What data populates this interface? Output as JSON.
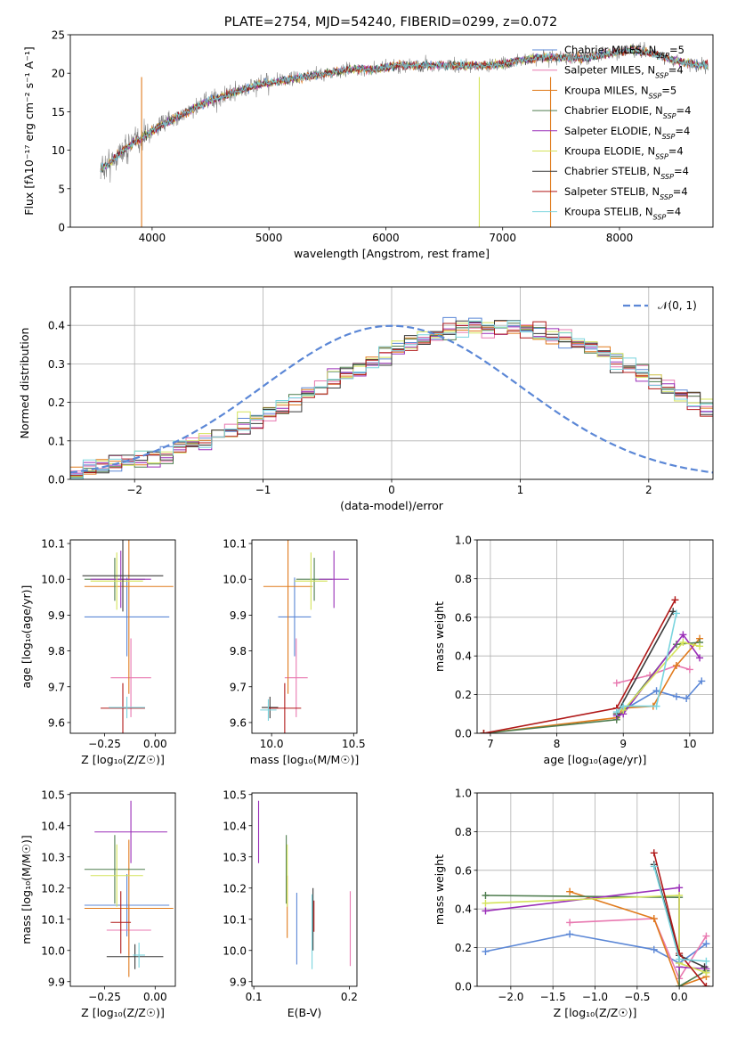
{
  "colors": {
    "Chabrier MILES": "#5b87d6",
    "Salpeter MILES": "#e878b0",
    "Kroupa MILES": "#e07b1d",
    "Chabrier ELODIE": "#4f7d4f",
    "Salpeter ELODIE": "#9a2fb8",
    "Kroupa ELODIE": "#d4e35a",
    "Chabrier STELIB": "#3a3a3a",
    "Salpeter STELIB": "#b01818",
    "Kroupa STELIB": "#79d4de",
    "data_spectrum": "#808080",
    "normal_curve": "#5b87d6"
  },
  "chart_data": [
    {
      "type": "line",
      "id": "spectrum",
      "title": "PLATE=2754, MJD=54240, FIBERID=0299, z=0.072",
      "xlabel": "wavelength [Angstrom, rest frame]",
      "ylabel": "Flux [fλ10⁻¹⁷ erg cm⁻² s⁻¹ A⁻¹]",
      "xlim": [
        3300,
        8800
      ],
      "ylim": [
        0,
        25
      ],
      "xticks": [
        4000,
        5000,
        6000,
        7000,
        8000
      ],
      "yticks": [
        0,
        5,
        10,
        15,
        20,
        25
      ],
      "grid": false,
      "legend_position": "right",
      "legend": [
        "Chabrier MILES, N_SSP=5",
        "Salpeter MILES, N_SSP=4",
        "Kroupa MILES, N_SSP=5",
        "Chabrier ELODIE, N_SSP=4",
        "Salpeter ELODIE, N_SSP=4",
        "Kroupa ELODIE, N_SSP=4",
        "Chabrier STELIB, N_SSP=4",
        "Salpeter STELIB, N_SSP=4",
        "Kroupa STELIB, N_SSP=4"
      ],
      "continuum": {
        "x": [
          3550,
          3650,
          3750,
          3850,
          3950,
          4050,
          4150,
          4300,
          4500,
          4700,
          4900,
          5100,
          5300,
          5500,
          5700,
          5900,
          6100,
          6300,
          6500,
          6700,
          6900,
          7100,
          7300,
          7500,
          7700,
          7900,
          8100,
          8300,
          8500,
          8700
        ],
        "y": [
          7.5,
          8.5,
          10,
          11,
          12,
          13,
          13.8,
          15,
          16.5,
          17.5,
          18.5,
          19,
          19.5,
          20,
          20.5,
          20.5,
          21,
          21,
          21,
          21,
          21,
          21.5,
          22,
          22,
          22,
          22.5,
          23,
          22.5,
          21.5,
          21
        ]
      },
      "spikes": [
        {
          "x": 3910,
          "y": 0
        },
        {
          "x": 6800,
          "y": 0
        },
        {
          "x": 7410,
          "y": 0
        }
      ]
    },
    {
      "type": "histogram",
      "id": "residuals",
      "xlabel": "(data-model)/error",
      "ylabel": "Normed distribution",
      "xlim": [
        -2.5,
        2.5
      ],
      "ylim": [
        0,
        0.5
      ],
      "xticks": [
        -2,
        -1,
        0,
        1,
        2
      ],
      "yticks": [
        0.0,
        0.1,
        0.2,
        0.3,
        0.4
      ],
      "grid": true,
      "legend": "𝒩(0, 1)",
      "bin_width": 0.1,
      "bin_start": -2.5,
      "mean_heights": [
        0.022,
        0.027,
        0.034,
        0.042,
        0.05,
        0.055,
        0.062,
        0.07,
        0.08,
        0.09,
        0.1,
        0.11,
        0.125,
        0.14,
        0.155,
        0.17,
        0.19,
        0.205,
        0.225,
        0.24,
        0.26,
        0.275,
        0.29,
        0.305,
        0.32,
        0.34,
        0.355,
        0.365,
        0.375,
        0.385,
        0.395,
        0.4,
        0.395,
        0.39,
        0.395,
        0.39,
        0.385,
        0.375,
        0.365,
        0.355,
        0.34,
        0.32,
        0.305,
        0.29,
        0.275,
        0.255,
        0.24,
        0.22,
        0.205,
        0.185,
        0.17,
        0.155,
        0.14,
        0.125,
        0.11,
        0.095,
        0.085,
        0.075,
        0.065,
        0.058,
        0.05,
        0.045,
        0.04,
        0.035,
        0.03,
        0.028,
        0.025
      ]
    },
    {
      "type": "scatter",
      "id": "z-age",
      "xlabel": "Z [log₁₀(Z/Z☉)]",
      "ylabel": "age [log₁₀(age/yr)]",
      "xlim": [
        -0.42,
        0.1
      ],
      "ylim": [
        9.57,
        10.11
      ],
      "xticks": [
        -0.25,
        0.0
      ],
      "yticks": [
        9.6,
        9.7,
        9.8,
        9.9,
        10.0,
        10.1
      ],
      "xtick_labels": [
        "−0.25",
        "0.00"
      ],
      "points": [
        {
          "model": "Chabrier MILES",
          "x": -0.14,
          "y": 9.895,
          "xerr": 0.21,
          "yerr": 0.11
        },
        {
          "model": "Salpeter MILES",
          "x": -0.12,
          "y": 9.725,
          "xerr": 0.1,
          "yerr": 0.11
        },
        {
          "model": "Kroupa MILES",
          "x": -0.13,
          "y": 9.98,
          "xerr": 0.22,
          "yerr": 0.3
        },
        {
          "model": "Chabrier ELODIE",
          "x": -0.2,
          "y": 10.0,
          "xerr": 0.15,
          "yerr": 0.06
        },
        {
          "model": "Salpeter ELODIE",
          "x": -0.17,
          "y": 10.0,
          "xerr": 0.15,
          "yerr": 0.08
        },
        {
          "model": "Kroupa ELODIE",
          "x": -0.19,
          "y": 9.995,
          "xerr": 0.13,
          "yerr": 0.08
        },
        {
          "model": "Chabrier STELIB",
          "x": -0.16,
          "y": 10.01,
          "xerr": 0.2,
          "yerr": 0.1
        },
        {
          "model": "Salpeter STELIB",
          "x": -0.16,
          "y": 9.64,
          "xerr": 0.11,
          "yerr": 0.07
        },
        {
          "model": "Kroupa STELIB",
          "x": -0.14,
          "y": 9.642,
          "xerr": 0.09,
          "yerr": 0.03
        }
      ]
    },
    {
      "type": "scatter",
      "id": "mass-age",
      "xlabel": "mass [log₁₀(M/M☉)]",
      "ylabel": "",
      "xlim": [
        9.88,
        10.52
      ],
      "ylim": [
        9.57,
        10.11
      ],
      "xticks": [
        10.0,
        10.5
      ],
      "yticks": [
        9.6,
        9.7,
        9.8,
        9.9,
        10.0,
        10.1
      ],
      "points": [
        {
          "model": "Chabrier MILES",
          "x": 10.14,
          "y": 9.895,
          "xerr": 0.1,
          "yerr": 0.11
        },
        {
          "model": "Salpeter MILES",
          "x": 10.15,
          "y": 9.725,
          "xerr": 0.07,
          "yerr": 0.11
        },
        {
          "model": "Kroupa MILES",
          "x": 10.1,
          "y": 9.98,
          "xerr": 0.15,
          "yerr": 0.3
        },
        {
          "model": "Chabrier ELODIE",
          "x": 10.26,
          "y": 10.0,
          "xerr": 0.11,
          "yerr": 0.06
        },
        {
          "model": "Salpeter ELODIE",
          "x": 10.38,
          "y": 10.0,
          "xerr": 0.09,
          "yerr": 0.08
        },
        {
          "model": "Kroupa ELODIE",
          "x": 10.24,
          "y": 9.995,
          "xerr": 0.1,
          "yerr": 0.08
        },
        {
          "model": "Chabrier STELIB",
          "x": 9.99,
          "y": 9.642,
          "xerr": 0.05,
          "yerr": 0.03
        },
        {
          "model": "Salpeter STELIB",
          "x": 10.08,
          "y": 9.64,
          "xerr": 0.1,
          "yerr": 0.07
        },
        {
          "model": "Kroupa STELIB",
          "x": 9.98,
          "y": 9.635,
          "xerr": 0.05,
          "yerr": 0.03
        }
      ]
    },
    {
      "type": "line",
      "id": "age-weight",
      "xlabel": "age  [log₁₀(age/yr)]",
      "ylabel": "mass weight",
      "xlim": [
        6.8,
        10.35
      ],
      "ylim": [
        0,
        1.0
      ],
      "xticks": [
        7,
        8,
        9,
        10
      ],
      "yticks": [
        0.0,
        0.2,
        0.4,
        0.6,
        0.8,
        1.0
      ],
      "grid": true,
      "series": [
        {
          "model": "Chabrier MILES",
          "x": [
            9.0,
            9.5,
            9.8,
            9.95,
            10.18
          ],
          "y": [
            0.12,
            0.22,
            0.19,
            0.18,
            0.27
          ]
        },
        {
          "model": "Salpeter MILES",
          "x": [
            8.9,
            9.4,
            9.8,
            10.0
          ],
          "y": [
            0.26,
            0.3,
            0.35,
            0.33
          ]
        },
        {
          "model": "Kroupa MILES",
          "x": [
            6.9,
            8.9,
            9.0,
            9.45,
            9.8,
            10.15
          ],
          "y": [
            0.0,
            0.08,
            0.13,
            0.14,
            0.35,
            0.49
          ]
        },
        {
          "model": "Chabrier ELODIE",
          "x": [
            6.9,
            8.9,
            9.8,
            10.15
          ],
          "y": [
            0.0,
            0.07,
            0.46,
            0.47
          ]
        },
        {
          "model": "Salpeter ELODIE",
          "x": [
            8.9,
            9.0,
            9.9,
            10.15
          ],
          "y": [
            0.09,
            0.1,
            0.51,
            0.39
          ]
        },
        {
          "model": "Kroupa ELODIE",
          "x": [
            9.0,
            9.9,
            10.15
          ],
          "y": [
            0.12,
            0.47,
            0.45
          ]
        },
        {
          "model": "Chabrier STELIB",
          "x": [
            8.9,
            9.75
          ],
          "y": [
            0.1,
            0.63
          ]
        },
        {
          "model": "Salpeter STELIB",
          "x": [
            6.9,
            8.9,
            9.78
          ],
          "y": [
            0.0,
            0.13,
            0.69
          ]
        },
        {
          "model": "Kroupa STELIB",
          "x": [
            8.9,
            9.0,
            9.5,
            9.8
          ],
          "y": [
            0.11,
            0.14,
            0.14,
            0.62
          ]
        }
      ]
    },
    {
      "type": "scatter",
      "id": "z-mass",
      "xlabel": "Z [log₁₀(Z/Z☉)]",
      "ylabel": "mass [log₁₀(M/M☉)]",
      "xlim": [
        -0.42,
        0.1
      ],
      "ylim": [
        9.885,
        10.505
      ],
      "xticks": [
        -0.25,
        0.0
      ],
      "xtick_labels": [
        "−0.25",
        "0.00"
      ],
      "yticks": [
        9.9,
        10.0,
        10.1,
        10.2,
        10.3,
        10.4,
        10.5
      ],
      "points": [
        {
          "model": "Chabrier MILES",
          "x": -0.14,
          "y": 10.145,
          "xerr": 0.21,
          "yerr": 0.1
        },
        {
          "model": "Salpeter MILES",
          "x": -0.13,
          "y": 10.065,
          "xerr": 0.11,
          "yerr": 0.08
        },
        {
          "model": "Kroupa MILES",
          "x": -0.13,
          "y": 10.135,
          "xerr": 0.22,
          "yerr": 0.22
        },
        {
          "model": "Chabrier ELODIE",
          "x": -0.2,
          "y": 10.26,
          "xerr": 0.15,
          "yerr": 0.11
        },
        {
          "model": "Salpeter ELODIE",
          "x": -0.12,
          "y": 10.38,
          "xerr": 0.18,
          "yerr": 0.1
        },
        {
          "model": "Kroupa ELODIE",
          "x": -0.19,
          "y": 10.24,
          "xerr": 0.13,
          "yerr": 0.1
        },
        {
          "model": "Chabrier STELIB",
          "x": -0.1,
          "y": 9.98,
          "xerr": 0.14,
          "yerr": 0.04
        },
        {
          "model": "Salpeter STELIB",
          "x": -0.17,
          "y": 10.09,
          "xerr": 0.05,
          "yerr": 0.1
        },
        {
          "model": "Kroupa STELIB",
          "x": -0.08,
          "y": 9.985,
          "xerr": 0.03,
          "yerr": 0.04
        }
      ]
    },
    {
      "type": "scatter",
      "id": "ebv-mass",
      "xlabel": "E(B-V)",
      "ylabel": "",
      "xlim": [
        0.098,
        0.208
      ],
      "ylim": [
        9.885,
        10.505
      ],
      "xticks": [
        0.1,
        0.2
      ],
      "yticks": [
        9.9,
        10.0,
        10.1,
        10.2,
        10.3,
        10.4,
        10.5
      ],
      "points": [
        {
          "model": "Chabrier MILES",
          "x": 0.145,
          "y": 10.07,
          "xerr": 0,
          "yerr": 0.115
        },
        {
          "model": "Salpeter MILES",
          "x": 0.201,
          "y": 10.07,
          "xerr": 0,
          "yerr": 0.12
        },
        {
          "model": "Kroupa MILES",
          "x": 0.135,
          "y": 10.14,
          "xerr": 0,
          "yerr": 0.1
        },
        {
          "model": "Chabrier ELODIE",
          "x": 0.134,
          "y": 10.26,
          "xerr": 0,
          "yerr": 0.11
        },
        {
          "model": "Salpeter ELODIE",
          "x": 0.105,
          "y": 10.38,
          "xerr": 0,
          "yerr": 0.1
        },
        {
          "model": "Kroupa ELODIE",
          "x": 0.135,
          "y": 10.24,
          "xerr": 0,
          "yerr": 0.1
        },
        {
          "model": "Chabrier STELIB",
          "x": 0.162,
          "y": 10.1,
          "xerr": 0,
          "yerr": 0.1
        },
        {
          "model": "Salpeter STELIB",
          "x": 0.163,
          "y": 10.11,
          "xerr": 0,
          "yerr": 0.05
        },
        {
          "model": "Kroupa STELIB",
          "x": 0.161,
          "y": 10.06,
          "xerr": 0,
          "yerr": 0.12
        }
      ]
    },
    {
      "type": "line",
      "id": "z-weight",
      "xlabel": "Z [log₁₀(Z/Z☉)]",
      "ylabel": "mass weight",
      "xlim": [
        -2.4,
        0.4
      ],
      "ylim": [
        0,
        1.0
      ],
      "xticks": [
        -2.0,
        -1.5,
        -1.0,
        -0.5,
        0.0
      ],
      "xtick_labels": [
        "−2.0",
        "−1.5",
        "−1.0",
        "−0.5",
        "0.0"
      ],
      "yticks": [
        0.0,
        0.2,
        0.4,
        0.6,
        0.8,
        1.0
      ],
      "grid": true,
      "series": [
        {
          "model": "Chabrier MILES",
          "x": [
            -2.3,
            -1.3,
            -0.3,
            0.0,
            0.32
          ],
          "y": [
            0.18,
            0.27,
            0.19,
            0.12,
            0.22
          ]
        },
        {
          "model": "Salpeter MILES",
          "x": [
            -1.3,
            -0.3,
            0.0,
            0.32
          ],
          "y": [
            0.33,
            0.35,
            0.04,
            0.26
          ]
        },
        {
          "model": "Kroupa MILES",
          "x": [
            -1.3,
            -0.3,
            0.0,
            0.32
          ],
          "y": [
            0.49,
            0.35,
            0.0,
            0.05
          ]
        },
        {
          "model": "Chabrier ELODIE",
          "x": [
            -2.3,
            0.0,
            0.0,
            0.32
          ],
          "y": [
            0.47,
            0.46,
            0.0,
            0.08
          ]
        },
        {
          "model": "Salpeter ELODIE",
          "x": [
            -2.3,
            0.0,
            0.0,
            0.32
          ],
          "y": [
            0.39,
            0.51,
            0.1,
            0.09
          ]
        },
        {
          "model": "Kroupa ELODIE",
          "x": [
            -2.3,
            0.0,
            0.0,
            0.32
          ],
          "y": [
            0.43,
            0.47,
            0.12,
            0.07
          ]
        },
        {
          "model": "Chabrier STELIB",
          "x": [
            -0.3,
            0.0,
            0.3
          ],
          "y": [
            0.63,
            0.16,
            0.1
          ]
        },
        {
          "model": "Salpeter STELIB",
          "x": [
            -0.3,
            0.0,
            0.32
          ],
          "y": [
            0.69,
            0.17,
            0.0
          ]
        },
        {
          "model": "Kroupa STELIB",
          "x": [
            -0.3,
            0.0,
            0.32
          ],
          "y": [
            0.62,
            0.14,
            0.13
          ]
        }
      ]
    }
  ]
}
